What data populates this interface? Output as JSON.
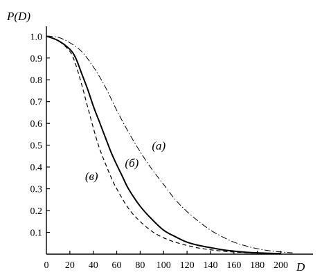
{
  "chart_data": {
    "type": "line",
    "ylabel": "P(D)",
    "xlabel": "D",
    "xlim": [
      0,
      218
    ],
    "ylim": [
      0,
      1.02
    ],
    "x_ticks": [
      0,
      20,
      40,
      60,
      80,
      100,
      120,
      140,
      160,
      180,
      200
    ],
    "y_ticks": [
      0.1,
      0.2,
      0.3,
      0.4,
      0.5,
      0.6,
      0.7,
      0.8,
      0.9,
      1.0
    ],
    "y_tick_labels": [
      "0.1",
      "0.2",
      "0.3",
      "0.4",
      "0.5",
      "0.6",
      "0.7",
      "0.8",
      "0.9",
      "1.0"
    ],
    "grid": false,
    "series": [
      {
        "name": "(a)",
        "style": "dash-dot",
        "color": "#000000",
        "x": [
          0,
          10,
          20,
          30,
          40,
          50,
          60,
          70,
          80,
          90,
          100,
          110,
          120,
          130,
          140,
          150,
          160,
          170,
          180,
          190,
          200,
          210
        ],
        "y": [
          1.0,
          0.995,
          0.97,
          0.93,
          0.86,
          0.77,
          0.66,
          0.56,
          0.47,
          0.39,
          0.32,
          0.25,
          0.195,
          0.15,
          0.11,
          0.08,
          0.055,
          0.038,
          0.025,
          0.016,
          0.01,
          0.006
        ],
        "label_at": [
          90,
          0.48
        ]
      },
      {
        "name": "(б)",
        "style": "solid",
        "color": "#000000",
        "x": [
          0,
          10,
          20,
          25,
          30,
          35,
          40,
          45,
          50,
          55,
          60,
          65,
          70,
          80,
          90,
          100,
          110,
          120,
          130,
          140,
          150,
          160,
          170,
          180,
          190,
          200
        ],
        "y": [
          1.0,
          0.98,
          0.94,
          0.9,
          0.83,
          0.76,
          0.68,
          0.61,
          0.54,
          0.47,
          0.41,
          0.355,
          0.3,
          0.22,
          0.16,
          0.11,
          0.08,
          0.055,
          0.04,
          0.03,
          0.02,
          0.014,
          0.009,
          0.006,
          0.004,
          0.003
        ],
        "label_at": [
          67,
          0.4
        ]
      },
      {
        "name": "(в)",
        "style": "dashed",
        "color": "#000000",
        "x": [
          0,
          10,
          20,
          25,
          30,
          35,
          40,
          45,
          50,
          55,
          60,
          70,
          80,
          90,
          100,
          110,
          120,
          130,
          140,
          150,
          160,
          170,
          180,
          200
        ],
        "y": [
          1.0,
          0.98,
          0.93,
          0.87,
          0.78,
          0.68,
          0.58,
          0.49,
          0.42,
          0.355,
          0.3,
          0.21,
          0.15,
          0.105,
          0.075,
          0.055,
          0.04,
          0.028,
          0.02,
          0.014,
          0.01,
          0.007,
          0.005,
          0.003
        ],
        "label_at": [
          33,
          0.34
        ]
      }
    ]
  }
}
